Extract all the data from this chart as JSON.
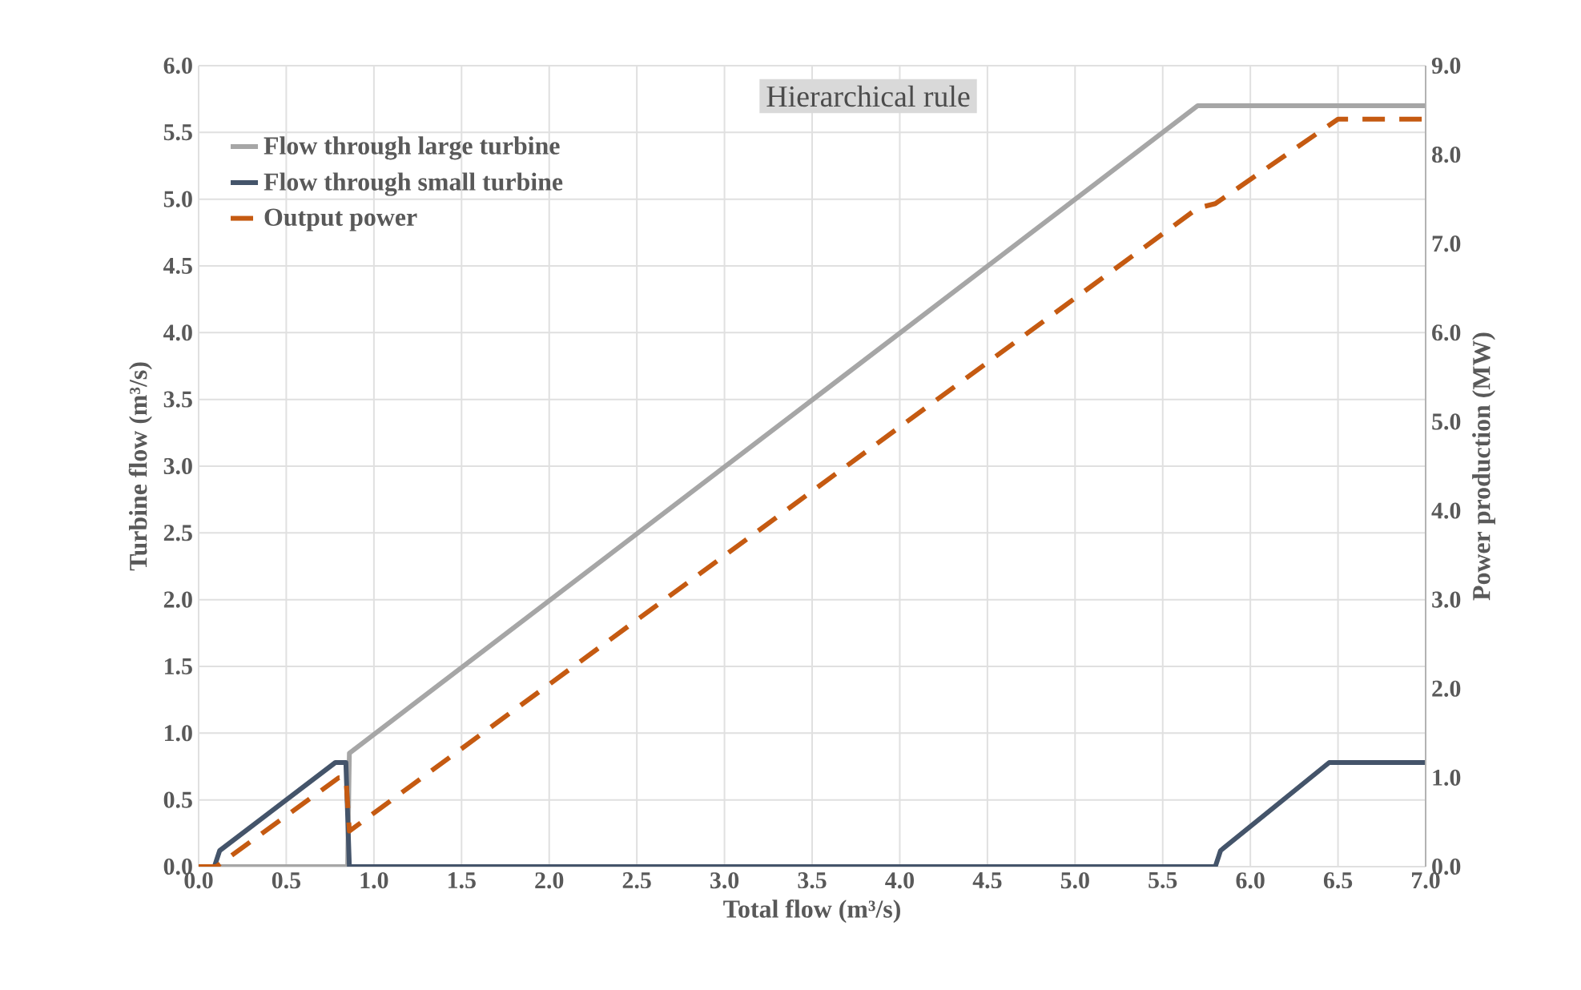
{
  "chart_data": {
    "type": "line",
    "title": "Hierarchical rule",
    "xlabel": "Total flow (m³/s)",
    "ylabel": "Turbine flow (m³/s)",
    "y2label": "Power production (MW)",
    "xlim": [
      0,
      7
    ],
    "ylim": [
      0,
      6
    ],
    "y2lim": [
      0,
      9
    ],
    "xticks": [
      {
        "value": 0,
        "label": "0.0"
      },
      {
        "value": 0.5,
        "label": "0.5"
      },
      {
        "value": 1,
        "label": "1.0"
      },
      {
        "value": 1.5,
        "label": "1.5"
      },
      {
        "value": 2,
        "label": "2.0"
      },
      {
        "value": 2.5,
        "label": "2.5"
      },
      {
        "value": 3,
        "label": "3.0"
      },
      {
        "value": 3.5,
        "label": "3.5"
      },
      {
        "value": 4,
        "label": "4.0"
      },
      {
        "value": 4.5,
        "label": "4.5"
      },
      {
        "value": 5,
        "label": "5.0"
      },
      {
        "value": 5.5,
        "label": "5.5"
      },
      {
        "value": 6,
        "label": "6.0"
      },
      {
        "value": 6.5,
        "label": "6.5"
      },
      {
        "value": 7,
        "label": "7.0"
      }
    ],
    "yticks": [
      {
        "value": 0,
        "label": "0.0"
      },
      {
        "value": 0.5,
        "label": "0.5"
      },
      {
        "value": 1,
        "label": "1.0"
      },
      {
        "value": 1.5,
        "label": "1.5"
      },
      {
        "value": 2,
        "label": "2.0"
      },
      {
        "value": 2.5,
        "label": "2.5"
      },
      {
        "value": 3,
        "label": "3.0"
      },
      {
        "value": 3.5,
        "label": "3.5"
      },
      {
        "value": 4,
        "label": "4.0"
      },
      {
        "value": 4.5,
        "label": "4.5"
      },
      {
        "value": 5,
        "label": "5.0"
      },
      {
        "value": 5.5,
        "label": "5.5"
      },
      {
        "value": 6,
        "label": "6.0"
      }
    ],
    "y2ticks": [
      {
        "value": 0,
        "label": "0.0"
      },
      {
        "value": 1,
        "label": "1.0"
      },
      {
        "value": 2,
        "label": "2.0"
      },
      {
        "value": 3,
        "label": "3.0"
      },
      {
        "value": 4,
        "label": "4.0"
      },
      {
        "value": 5,
        "label": "5.0"
      },
      {
        "value": 6,
        "label": "6.0"
      },
      {
        "value": 7,
        "label": "7.0"
      },
      {
        "value": 8,
        "label": "8.0"
      },
      {
        "value": 9,
        "label": "9.0"
      }
    ],
    "grid": true,
    "legend": "top left",
    "marker": "none",
    "series": [
      {
        "name": "Flow through large turbine",
        "color": "#a6a6a6",
        "x": [
          0,
          0.85,
          0.86,
          5.7,
          7
        ],
        "values": [
          0,
          0,
          0.85,
          5.7,
          5.7
        ]
      },
      {
        "name": "Flow through small turbine",
        "color": "#44546a",
        "x": [
          0,
          0.09,
          0.12,
          0.78,
          0.84,
          0.86,
          5.8,
          5.83,
          6.45,
          7
        ],
        "values": [
          0,
          0,
          0.12,
          0.78,
          0.78,
          0,
          0,
          0.12,
          0.78,
          0.78
        ]
      },
      {
        "name": "Output power",
        "color": "#c55a11",
        "line_style": "dashed",
        "axis": "y2",
        "x": [
          0,
          0.1,
          0.8,
          0.84,
          0.86,
          5.7,
          5.8,
          6.5,
          7
        ],
        "values": [
          0,
          0,
          1.0,
          1.0,
          0.4,
          7.4,
          7.45,
          8.4,
          8.4
        ]
      }
    ]
  }
}
